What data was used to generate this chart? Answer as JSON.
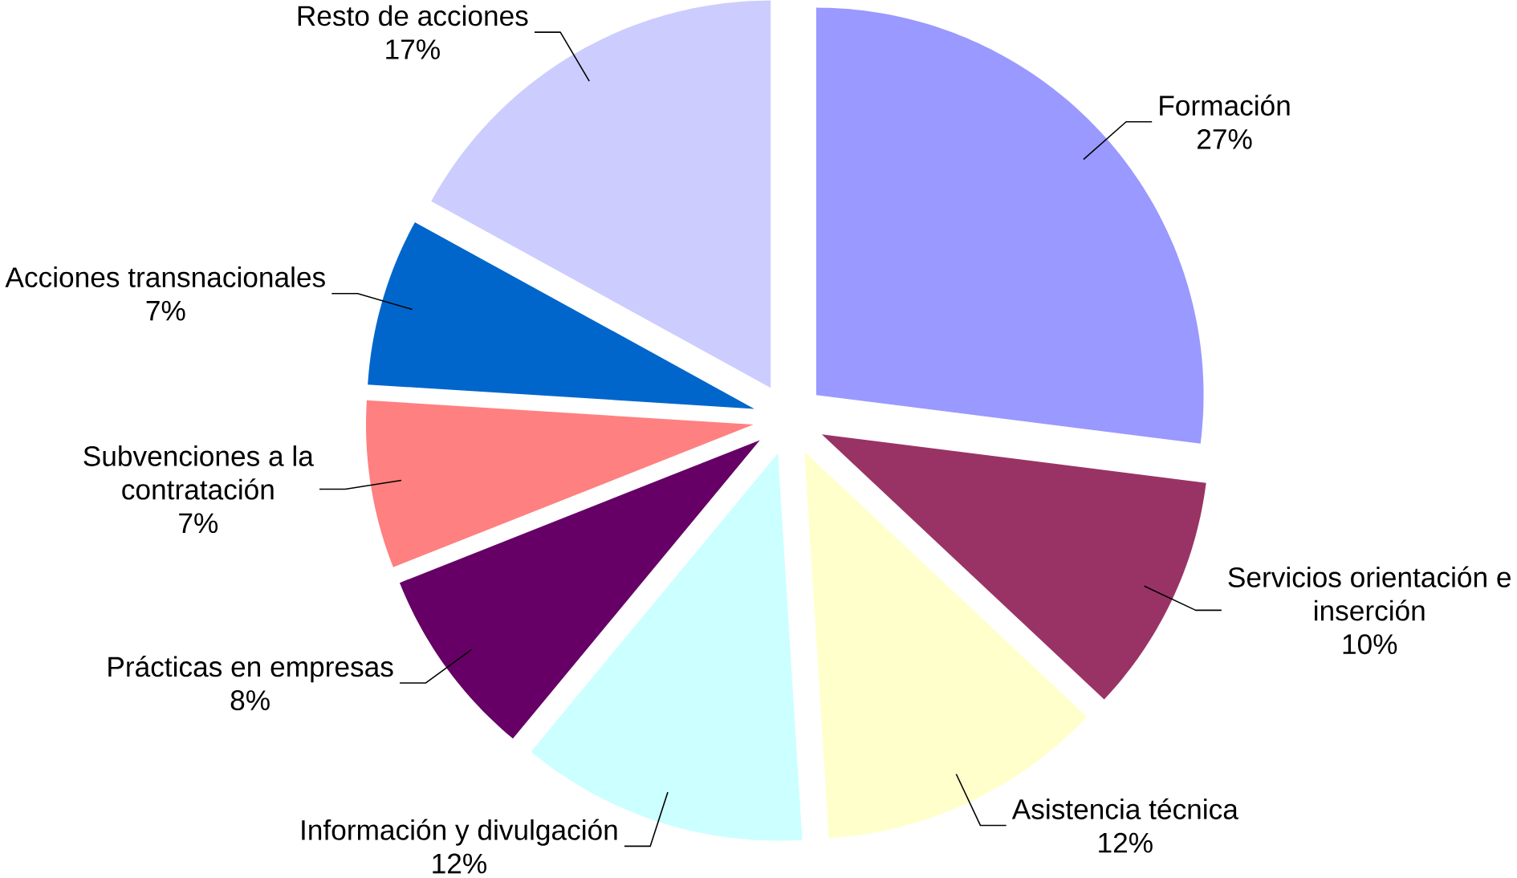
{
  "chart_data": {
    "type": "pie",
    "categories": [
      "Formación",
      "Servicios orientación e inserción",
      "Asistencia técnica",
      "Información y divulgación",
      "Prácticas en empresas",
      "Subvenciones a la contratación",
      "Acciones transnacionales",
      "Resto de acciones"
    ],
    "values": [
      27,
      10,
      12,
      12,
      8,
      7,
      7,
      17
    ],
    "value_labels": [
      "27%",
      "10%",
      "12%",
      "12%",
      "8%",
      "7%",
      "7%",
      "17%"
    ],
    "colors": [
      "#9999ff",
      "#993366",
      "#ffffcc",
      "#ccffff",
      "#660066",
      "#ff8080",
      "#0066cc",
      "#ccccff"
    ]
  }
}
